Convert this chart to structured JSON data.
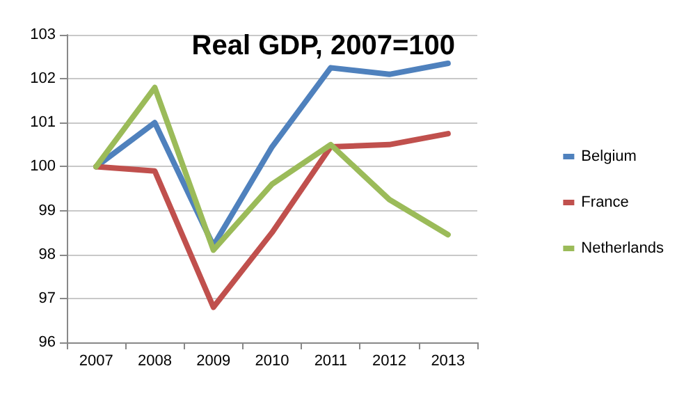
{
  "chart_data": {
    "type": "line",
    "title": "Real GDP, 2007=100",
    "categories": [
      "2007",
      "2008",
      "2009",
      "2010",
      "2011",
      "2012",
      "2013"
    ],
    "series": [
      {
        "name": "Belgium",
        "color": "#4f81bd",
        "values": [
          100,
          101,
          98.2,
          100.45,
          102.25,
          102.1,
          102.35
        ]
      },
      {
        "name": "France",
        "color": "#c0504d",
        "values": [
          100,
          99.9,
          96.8,
          98.5,
          100.45,
          100.5,
          100.75
        ]
      },
      {
        "name": "Netherlands",
        "color": "#9bbb59",
        "values": [
          100,
          101.8,
          98.1,
          99.6,
          100.5,
          99.25,
          98.45
        ]
      }
    ],
    "ylim": [
      96,
      103
    ],
    "yticks": [
      96,
      97,
      98,
      99,
      100,
      101,
      102,
      103
    ],
    "grid": "y",
    "legend": "right",
    "marker": "none",
    "line_style": "solid"
  }
}
